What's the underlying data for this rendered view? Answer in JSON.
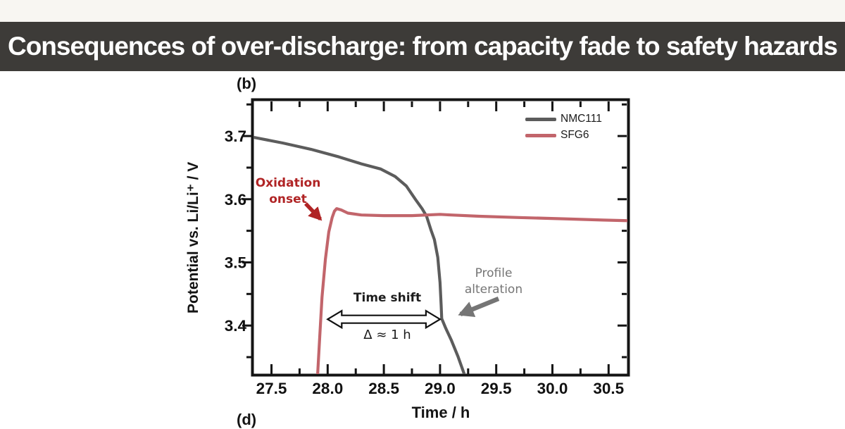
{
  "banner": {
    "title": "Consequences of over-discharge: from capacity fade to safety hazards",
    "bg_color": "#3d3b38",
    "text_color": "#ffffff"
  },
  "figure": {
    "panel_label_top": "(b)",
    "panel_label_bottom": "(d)",
    "legend": {
      "items": [
        {
          "label": "NMC111",
          "color": "#5c5c5c"
        },
        {
          "label": "SFG6",
          "color": "#c2656b"
        }
      ]
    },
    "annotations": {
      "oxidation_onset": {
        "line1": "Oxidation",
        "line2": "onset",
        "color": "#b02425"
      },
      "time_shift": {
        "label": "Time shift",
        "delta": "Δ ≈ 1 h",
        "color": "#1d1d1d"
      },
      "profile_alteration": {
        "line1": "Profile",
        "line2": "alteration",
        "color": "#757575"
      }
    }
  },
  "chart_data": {
    "type": "line",
    "title": "",
    "xlabel": "Time / h",
    "ylabel": "Potential vs. Li/Li⁺ / V",
    "xlim": [
      27.34,
      30.68
    ],
    "ylim": [
      3.321,
      3.757
    ],
    "grid": false,
    "legend_position": "top-right",
    "x_major_ticks": [
      27.5,
      28.0,
      28.5,
      29.0,
      29.5,
      30.0,
      30.5
    ],
    "x_minor_ticks": [
      27.75,
      28.25,
      28.75,
      29.25,
      29.75,
      30.25
    ],
    "y_major_ticks": [
      3.4,
      3.5,
      3.6,
      3.7
    ],
    "y_minor_ticks": [
      3.35,
      3.45,
      3.55,
      3.65,
      3.75
    ],
    "series": [
      {
        "name": "NMC111",
        "color": "#5c5c5c",
        "points": [
          [
            27.34,
            3.698
          ],
          [
            27.6,
            3.689
          ],
          [
            27.85,
            3.679
          ],
          [
            28.1,
            3.667
          ],
          [
            28.3,
            3.656
          ],
          [
            28.47,
            3.648
          ],
          [
            28.6,
            3.636
          ],
          [
            28.7,
            3.621
          ],
          [
            28.78,
            3.6
          ],
          [
            28.84,
            3.585
          ],
          [
            28.88,
            3.573
          ],
          [
            28.92,
            3.551
          ],
          [
            28.95,
            3.536
          ],
          [
            28.98,
            3.508
          ],
          [
            29.0,
            3.468
          ],
          [
            29.01,
            3.432
          ],
          [
            29.015,
            3.411
          ],
          [
            29.05,
            3.396
          ],
          [
            29.1,
            3.377
          ],
          [
            29.16,
            3.351
          ],
          [
            29.22,
            3.321
          ]
        ]
      },
      {
        "name": "SFG6",
        "color": "#c2656b",
        "points": [
          [
            27.91,
            3.321
          ],
          [
            27.93,
            3.385
          ],
          [
            27.95,
            3.445
          ],
          [
            27.98,
            3.505
          ],
          [
            28.01,
            3.548
          ],
          [
            28.04,
            3.571
          ],
          [
            28.06,
            3.581
          ],
          [
            28.08,
            3.585
          ],
          [
            28.12,
            3.583
          ],
          [
            28.18,
            3.578
          ],
          [
            28.3,
            3.575
          ],
          [
            28.5,
            3.574
          ],
          [
            28.75,
            3.574
          ],
          [
            29.0,
            3.576
          ],
          [
            29.1,
            3.575
          ],
          [
            29.35,
            3.573
          ],
          [
            29.7,
            3.571
          ],
          [
            30.1,
            3.569
          ],
          [
            30.45,
            3.567
          ],
          [
            30.68,
            3.566
          ]
        ]
      }
    ],
    "annotations_data": {
      "time_shift_span_h": [
        28.0,
        29.0
      ],
      "time_shift_voltage": 3.41,
      "oxidation_onset_time_h": 28.0,
      "profile_alteration_point": [
        29.01,
        3.41
      ]
    }
  }
}
